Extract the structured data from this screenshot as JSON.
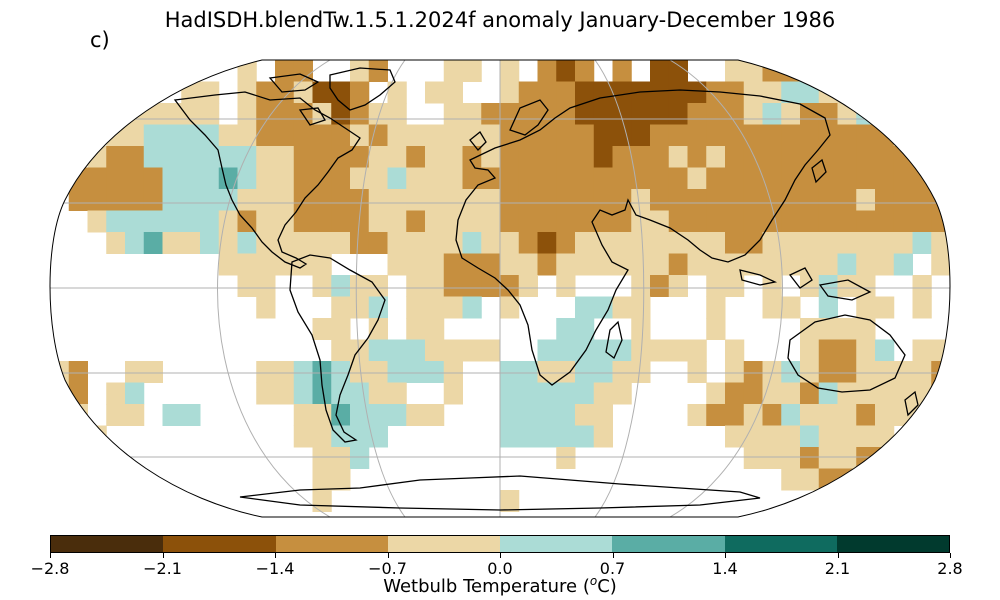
{
  "title": "HadISDH.blendTw.1.5.1.2024f anomaly January-December 1986",
  "panel_label": "c)",
  "colorbar": {
    "label_main": "Wetbulb Temperature (",
    "label_sup": "o",
    "label_end": "C)",
    "ticks": [
      "−2.8",
      "−2.1",
      "−1.4",
      "−0.7",
      "0.0",
      "0.7",
      "1.4",
      "2.1",
      "2.8"
    ],
    "colors": [
      "#543005",
      "#8c510a",
      "#bf812d",
      "#dfc27d",
      "#f6e8c3",
      "#c7eae5",
      "#80cdc1",
      "#35978f",
      "#01665e"
    ]
  },
  "map_colors": {
    "strong_neg": "#8c510a",
    "neg": "#c68f3f",
    "weak_neg": "#ecd7a6",
    "weak_pos": "#abdcd6",
    "pos": "#5aada5",
    "land_outline": "#000000",
    "graticule": "#b0b0b0"
  }
}
